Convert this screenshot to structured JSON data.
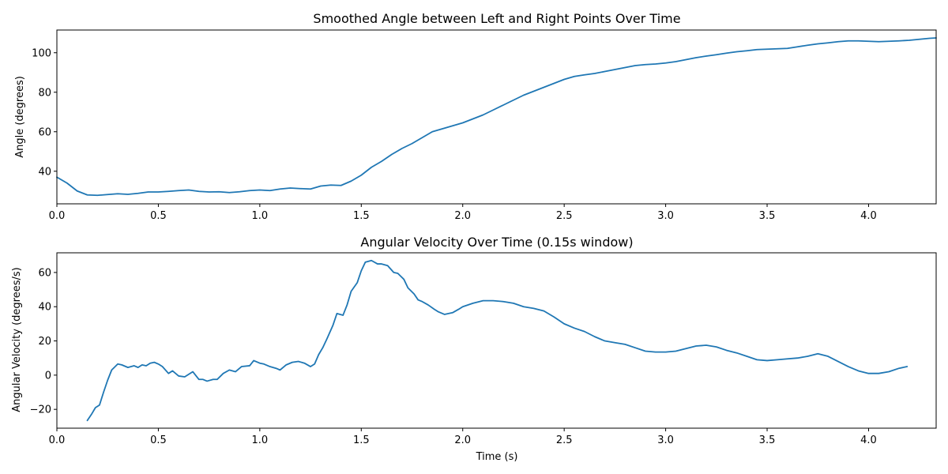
{
  "chart_data": [
    {
      "type": "line",
      "title": "Smoothed Angle between Left and Right Points Over Time",
      "xlabel": "",
      "ylabel": "Angle (degrees)",
      "xlim": [
        0,
        4.333
      ],
      "ylim": [
        23.5,
        111.5
      ],
      "xticks": [
        0,
        0.5,
        1,
        1.5,
        2,
        2.5,
        3,
        3.5,
        4
      ],
      "xtick_labels": [
        "0.0",
        "0.5",
        "1.0",
        "1.5",
        "2.0",
        "2.5",
        "3.0",
        "3.5",
        "4.0"
      ],
      "yticks": [
        40,
        60,
        80,
        100
      ],
      "ytick_labels": [
        "40",
        "60",
        "80",
        "100"
      ],
      "grid": false,
      "color": "#1f77b4",
      "series": [
        {
          "x": [
            0,
            0.05,
            0.1,
            0.15,
            0.2,
            0.25,
            0.3,
            0.35,
            0.4,
            0.45,
            0.5,
            0.55,
            0.6,
            0.65,
            0.7,
            0.75,
            0.8,
            0.85,
            0.9,
            0.95,
            1.0,
            1.05,
            1.1,
            1.15,
            1.2,
            1.25,
            1.3,
            1.35,
            1.4,
            1.45,
            1.5,
            1.55,
            1.6,
            1.65,
            1.7,
            1.75,
            1.8,
            1.85,
            1.9,
            1.95,
            2.0,
            2.05,
            2.1,
            2.15,
            2.2,
            2.25,
            2.3,
            2.35,
            2.4,
            2.45,
            2.5,
            2.55,
            2.6,
            2.65,
            2.7,
            2.75,
            2.8,
            2.85,
            2.9,
            2.95,
            3.0,
            3.05,
            3.1,
            3.15,
            3.2,
            3.25,
            3.3,
            3.35,
            3.4,
            3.45,
            3.5,
            3.55,
            3.6,
            3.65,
            3.7,
            3.75,
            3.8,
            3.85,
            3.9,
            3.95,
            4.0,
            4.05,
            4.1,
            4.15,
            4.2,
            4.25,
            4.3,
            4.333
          ],
          "values": [
            37.0,
            34.0,
            30.0,
            28.0,
            27.8,
            28.2,
            28.6,
            28.3,
            28.8,
            29.5,
            29.5,
            29.8,
            30.2,
            30.5,
            29.8,
            29.5,
            29.6,
            29.2,
            29.6,
            30.2,
            30.5,
            30.2,
            31.0,
            31.5,
            31.2,
            31.0,
            32.5,
            33.0,
            32.8,
            35.0,
            38.0,
            42.0,
            45.0,
            48.5,
            51.5,
            54.0,
            57.0,
            60.0,
            61.5,
            63.0,
            64.5,
            66.5,
            68.5,
            71.0,
            73.5,
            76.0,
            78.5,
            80.5,
            82.5,
            84.5,
            86.5,
            88.0,
            88.8,
            89.5,
            90.5,
            91.5,
            92.5,
            93.5,
            94.0,
            94.3,
            94.8,
            95.5,
            96.5,
            97.5,
            98.3,
            99.0,
            99.8,
            100.5,
            101.0,
            101.6,
            101.8,
            102.0,
            102.2,
            103.0,
            103.8,
            104.5,
            105.0,
            105.6,
            106.0,
            106.0,
            105.8,
            105.6,
            105.8,
            106.0,
            106.3,
            106.8,
            107.3,
            107.5
          ]
        }
      ]
    },
    {
      "type": "line",
      "title": "Angular Velocity Over Time (0.15s window)",
      "xlabel": "Time (s)",
      "ylabel": "Angular Velocity (degrees/s)",
      "xlim": [
        0,
        4.333
      ],
      "ylim": [
        -31,
        71.5
      ],
      "xticks": [
        0,
        0.5,
        1,
        1.5,
        2,
        2.5,
        3,
        3.5,
        4
      ],
      "xtick_labels": [
        "0.0",
        "0.5",
        "1.0",
        "1.5",
        "2.0",
        "2.5",
        "3.0",
        "3.5",
        "4.0"
      ],
      "yticks": [
        -20,
        0,
        20,
        40,
        60
      ],
      "ytick_labels": [
        "−20",
        "0",
        "20",
        "40",
        "60"
      ],
      "grid": false,
      "color": "#1f77b4",
      "series": [
        {
          "x": [
            0.15,
            0.17,
            0.19,
            0.21,
            0.23,
            0.25,
            0.27,
            0.3,
            0.32,
            0.35,
            0.38,
            0.4,
            0.42,
            0.44,
            0.46,
            0.48,
            0.5,
            0.52,
            0.55,
            0.57,
            0.6,
            0.63,
            0.65,
            0.67,
            0.7,
            0.72,
            0.74,
            0.77,
            0.79,
            0.82,
            0.85,
            0.88,
            0.91,
            0.95,
            0.97,
            1.0,
            1.02,
            1.05,
            1.08,
            1.1,
            1.13,
            1.16,
            1.19,
            1.22,
            1.25,
            1.27,
            1.29,
            1.31,
            1.33,
            1.36,
            1.38,
            1.41,
            1.43,
            1.45,
            1.48,
            1.5,
            1.52,
            1.55,
            1.58,
            1.6,
            1.63,
            1.66,
            1.68,
            1.71,
            1.73,
            1.76,
            1.78,
            1.8,
            1.83,
            1.86,
            1.88,
            1.91,
            1.95,
            1.98,
            2.0,
            2.05,
            2.1,
            2.15,
            2.2,
            2.25,
            2.3,
            2.35,
            2.4,
            2.45,
            2.5,
            2.55,
            2.6,
            2.65,
            2.7,
            2.75,
            2.8,
            2.85,
            2.9,
            2.95,
            3.0,
            3.05,
            3.1,
            3.15,
            3.2,
            3.25,
            3.3,
            3.35,
            3.4,
            3.45,
            3.5,
            3.55,
            3.6,
            3.65,
            3.7,
            3.75,
            3.8,
            3.85,
            3.9,
            3.95,
            4.0,
            4.05,
            4.1,
            4.15,
            4.19
          ],
          "values": [
            -26.5,
            -23.0,
            -19.0,
            -17.5,
            -10.0,
            -3.0,
            3.0,
            6.5,
            6.0,
            4.5,
            5.5,
            4.5,
            6.0,
            5.5,
            7.0,
            7.5,
            6.5,
            5.0,
            1.0,
            2.5,
            -0.5,
            -1.0,
            0.5,
            2.0,
            -2.5,
            -2.5,
            -3.5,
            -2.5,
            -2.5,
            1.0,
            3.0,
            2.0,
            5.0,
            5.5,
            8.5,
            7.0,
            6.5,
            5.0,
            4.0,
            3.0,
            6.0,
            7.5,
            8.0,
            7.0,
            5.0,
            6.5,
            12.0,
            16.0,
            21.0,
            29.0,
            36.0,
            35.0,
            41.0,
            49.0,
            54.0,
            61.0,
            66.0,
            67.0,
            65.0,
            65.0,
            64.0,
            60.0,
            59.5,
            56.0,
            51.0,
            47.5,
            44.0,
            43.0,
            41.0,
            38.5,
            37.0,
            35.5,
            36.5,
            38.5,
            40.0,
            42.0,
            43.5,
            43.5,
            43.0,
            42.0,
            40.0,
            39.0,
            37.5,
            34.0,
            30.0,
            27.5,
            25.5,
            22.5,
            20.0,
            19.0,
            18.0,
            16.0,
            14.0,
            13.5,
            13.5,
            14.0,
            15.5,
            17.0,
            17.5,
            16.5,
            14.5,
            13.0,
            11.0,
            9.0,
            8.5,
            9.0,
            9.5,
            10.0,
            11.0,
            12.5,
            11.0,
            8.0,
            5.0,
            2.5,
            1.0,
            1.0,
            2.0,
            4.0,
            5.0
          ]
        }
      ]
    }
  ]
}
